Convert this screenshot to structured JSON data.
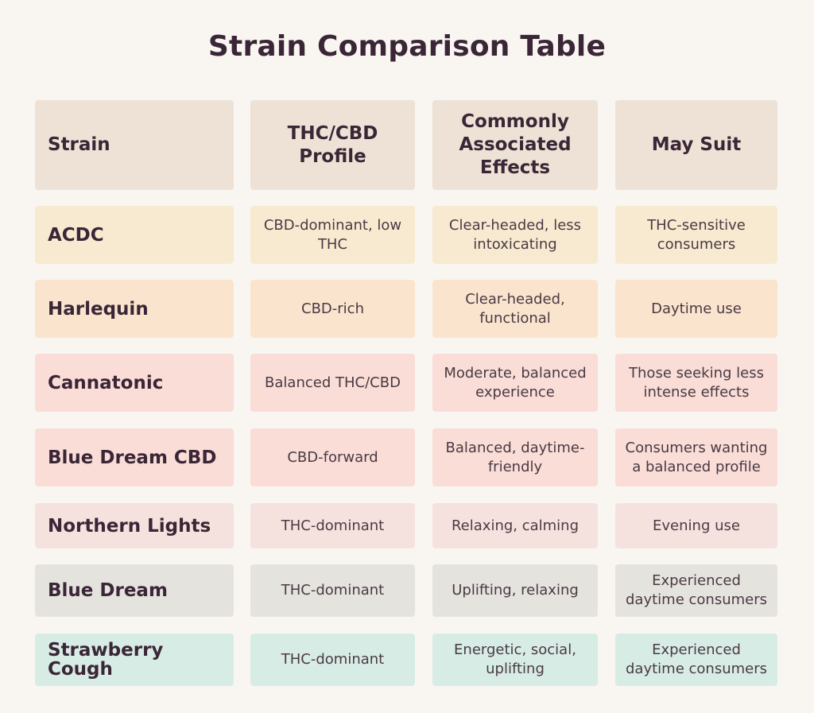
{
  "title": "Strain Comparison Table",
  "headers": [
    "Strain",
    "THC/CBD Profile",
    "Commonly Associated Effects",
    "May Suit"
  ],
  "header_color": "#ede2d5",
  "rows": [
    {
      "strain": "ACDC",
      "profile": "CBD-dominant, low THC",
      "effects": "Clear-headed, less intoxicating",
      "suit": "THC-sensitive consumers",
      "color": "#f7ead0"
    },
    {
      "strain": "Harlequin",
      "profile": "CBD-rich",
      "effects": "Clear-headed, functional",
      "suit": "Daytime use",
      "color": "#fae4cd"
    },
    {
      "strain": "Cannatonic",
      "profile": "Balanced THC/CBD",
      "effects": "Moderate, balanced experience",
      "suit": "Those seeking less intense effects",
      "color": "#f9ddd6"
    },
    {
      "strain": "Blue Dream CBD",
      "profile": "CBD-forward",
      "effects": "Balanced, daytime-friendly",
      "suit": "Consumers wanting a balanced profile",
      "color": "#f9ddd6"
    },
    {
      "strain": "Northern Lights",
      "profile": "THC-dominant",
      "effects": "Relaxing, calming",
      "suit": "Evening use",
      "color": "#f5e2de"
    },
    {
      "strain": "Blue Dream",
      "profile": "THC-dominant",
      "effects": "Uplifting, relaxing",
      "suit": "Experienced daytime consumers",
      "color": "#e5e3de"
    },
    {
      "strain": "Strawberry Cough",
      "profile": "THC-dominant",
      "effects": "Energetic, social, uplifting",
      "suit": "Experienced daytime consumers",
      "color": "#d8ece6"
    }
  ]
}
